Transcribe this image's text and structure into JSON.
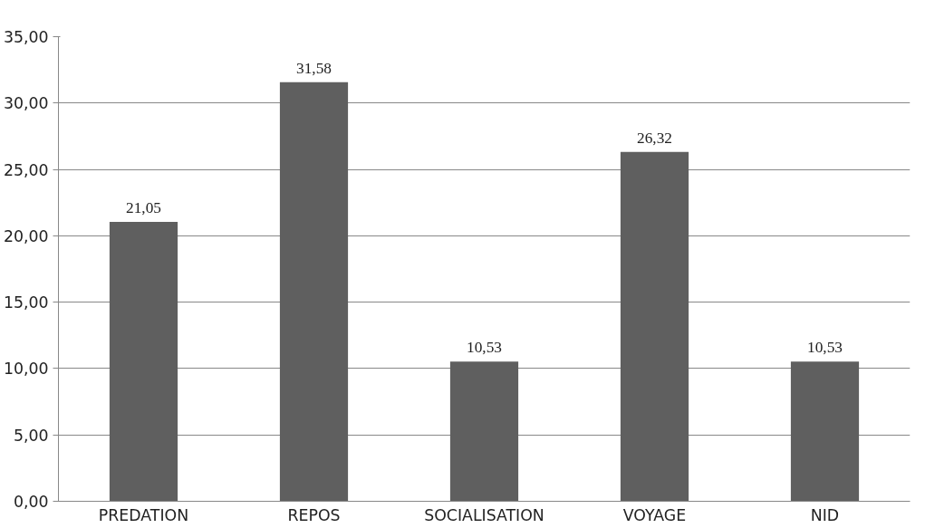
{
  "chart_data": {
    "type": "bar",
    "categories": [
      "PREDATION",
      "REPOS",
      "SOCIALISATION",
      "VOYAGE",
      "NID"
    ],
    "values": [
      21.05,
      31.58,
      10.53,
      26.32,
      10.53
    ],
    "value_labels": [
      "21,05",
      "31,58",
      "10,53",
      "26,32",
      "10,53"
    ],
    "color": "#5f5f5f",
    "ylim": [
      0,
      35
    ],
    "yticks": [
      {
        "value": 0,
        "label": "0,00"
      },
      {
        "value": 5,
        "label": "5,00"
      },
      {
        "value": 10,
        "label": "10,00"
      },
      {
        "value": 15,
        "label": "15,00"
      },
      {
        "value": 20,
        "label": "20,00"
      },
      {
        "value": 25,
        "label": "25,00"
      },
      {
        "value": 30,
        "label": "30,00"
      },
      {
        "value": 35,
        "label": "35,00"
      }
    ],
    "grid": "y"
  }
}
